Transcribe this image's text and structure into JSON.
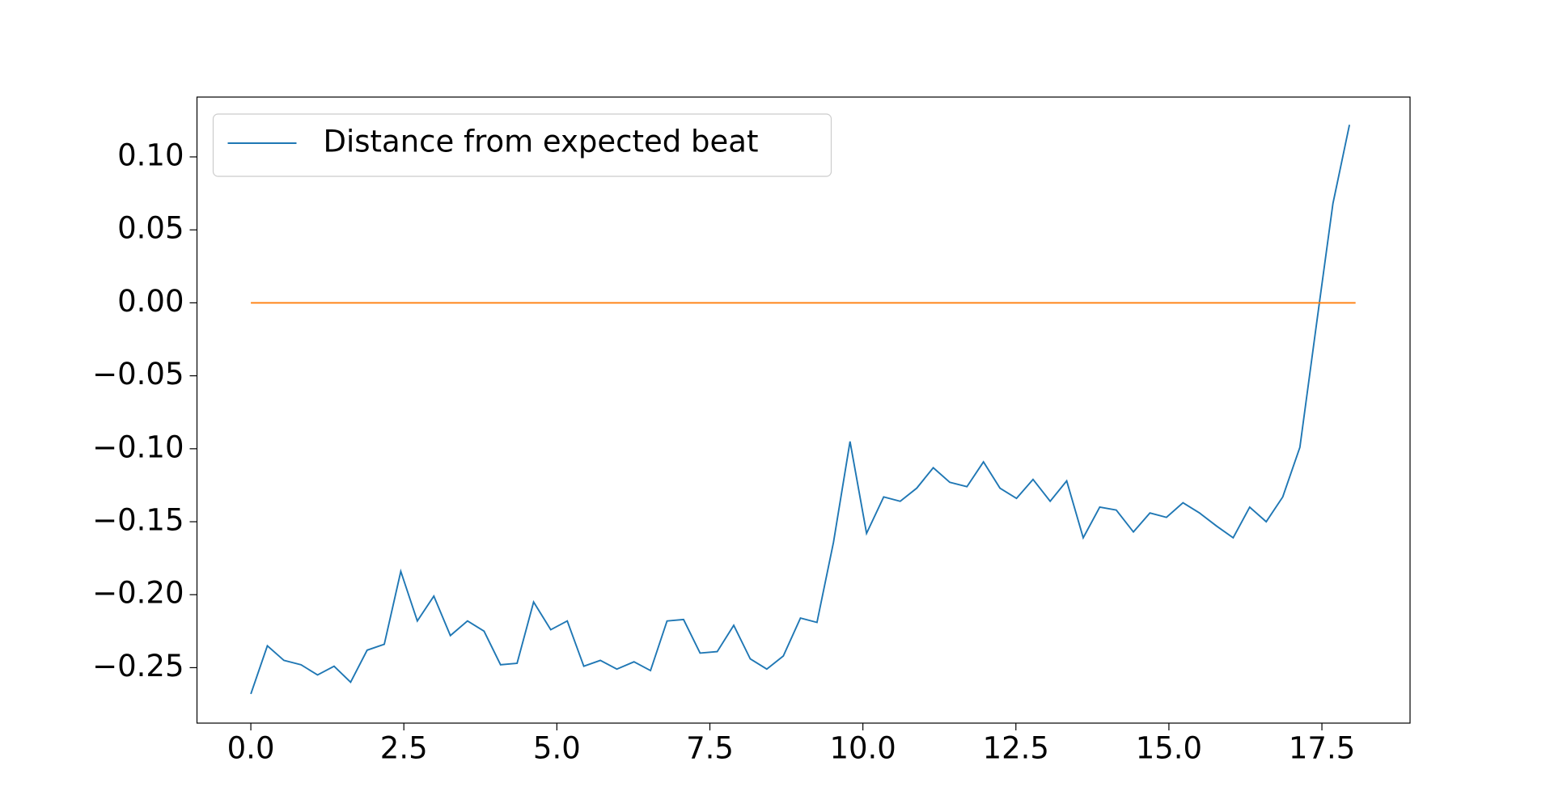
{
  "chart_data": {
    "type": "line",
    "series": [
      {
        "name": "Distance from expected beat",
        "color": "#1f77b4",
        "x": [
          0,
          0.27,
          0.54,
          0.82,
          1.09,
          1.36,
          1.63,
          1.9,
          2.18,
          2.45,
          2.72,
          2.99,
          3.26,
          3.54,
          3.81,
          4.08,
          4.35,
          4.62,
          4.9,
          5.17,
          5.44,
          5.71,
          5.98,
          6.26,
          6.53,
          6.8,
          7.07,
          7.34,
          7.62,
          7.89,
          8.16,
          8.43,
          8.7,
          8.98,
          9.25,
          9.52,
          9.79,
          10.06,
          10.34,
          10.61,
          10.88,
          11.15,
          11.42,
          11.7,
          11.97,
          12.24,
          12.51,
          12.78,
          13.06,
          13.33,
          13.6,
          13.87,
          14.14,
          14.42,
          14.69,
          14.96,
          15.23,
          15.5,
          15.78,
          16.05,
          16.32,
          16.59,
          16.86,
          17.14,
          17.41,
          17.68,
          17.95
        ],
        "values": [
          -0.268,
          -0.235,
          -0.245,
          -0.248,
          -0.255,
          -0.249,
          -0.26,
          -0.238,
          -0.234,
          -0.184,
          -0.218,
          -0.201,
          -0.228,
          -0.218,
          -0.225,
          -0.248,
          -0.247,
          -0.205,
          -0.224,
          -0.218,
          -0.249,
          -0.245,
          -0.251,
          -0.246,
          -0.252,
          -0.218,
          -0.217,
          -0.24,
          -0.239,
          -0.221,
          -0.244,
          -0.251,
          -0.242,
          -0.216,
          -0.219,
          -0.164,
          -0.095,
          -0.158,
          -0.133,
          -0.136,
          -0.127,
          -0.113,
          -0.123,
          -0.126,
          -0.109,
          -0.127,
          -0.134,
          -0.121,
          -0.136,
          -0.122,
          -0.161,
          -0.14,
          -0.142,
          -0.157,
          -0.144,
          -0.147,
          -0.137,
          -0.144,
          -0.153,
          -0.161,
          -0.14,
          -0.15,
          -0.133,
          -0.099,
          -0.015,
          0.068,
          0.122
        ]
      },
      {
        "color": "#ff7f0e",
        "x": [
          0,
          18.05
        ],
        "values": [
          0,
          0
        ]
      }
    ],
    "xlim": [
      -0.88,
      18.94
    ],
    "ylim": [
      -0.288,
      0.141
    ],
    "xticks": [
      {
        "value": 0,
        "label": "0.0"
      },
      2.5,
      {
        "value": 5,
        "label": "5.0"
      },
      7.5,
      {
        "value": 10,
        "label": "10.0"
      },
      12.5,
      {
        "value": 15,
        "label": "15.0"
      },
      17.5
    ],
    "yticks": [
      {
        "value": -0.25,
        "label": "−0.25"
      },
      {
        "value": -0.2,
        "label": "−0.20"
      },
      {
        "value": -0.15,
        "label": "−0.15"
      },
      {
        "value": -0.1,
        "label": "−0.10"
      },
      {
        "value": -0.05,
        "label": "−0.05"
      },
      {
        "value": 0,
        "label": "0.00"
      },
      {
        "value": 0.05,
        "label": "0.05"
      },
      {
        "value": 0.1,
        "label": "0.10"
      }
    ],
    "grid": false,
    "legend": "upper left"
  }
}
